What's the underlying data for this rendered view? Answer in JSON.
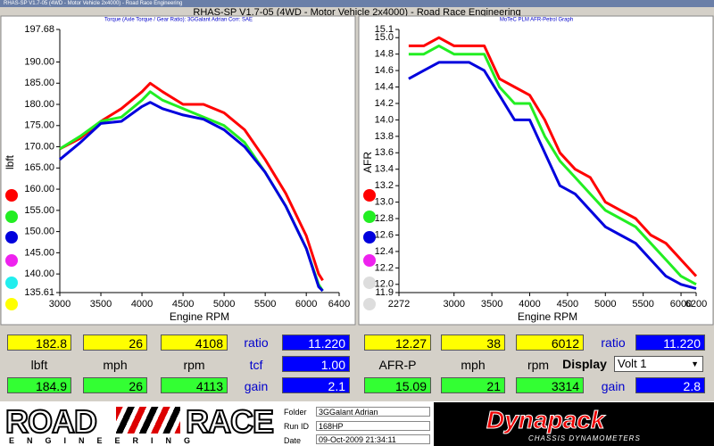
{
  "window": {
    "titlebar": "RHAS-SP V1.7-05   (4WD - Motor Vehicle 2x4000) - Road Race Engineering",
    "title": "RHAS-SP V1.7-05   (4WD - Motor Vehicle 2x4000) - Road Race Engineering"
  },
  "chart_data": [
    {
      "type": "line",
      "title": "Torque (Axle Torque / Gear Ratio): 3GGalant Adrian   Corr: SAE",
      "x_label": "Engine RPM",
      "y_label": "lbft",
      "x": [
        3000,
        3250,
        3500,
        3750,
        4000,
        4100,
        4250,
        4500,
        4750,
        5000,
        5250,
        5500,
        5750,
        6000,
        6150,
        6200
      ],
      "series": [
        {
          "color": "#ff0000",
          "values": [
            169.5,
            172,
            176,
            179,
            183,
            185,
            183,
            180,
            180,
            178,
            174,
            167,
            159,
            149,
            140,
            138.5
          ]
        },
        {
          "color": "#22ee22",
          "values": [
            169.5,
            172.5,
            176,
            177,
            181,
            183,
            181,
            179,
            177,
            175,
            171,
            164,
            156,
            146,
            137.5,
            136
          ]
        },
        {
          "color": "#0000dd",
          "values": [
            167,
            171,
            175.5,
            176,
            179.5,
            180.5,
            179,
            177.5,
            176.5,
            174,
            170,
            164,
            156,
            146,
            137,
            136
          ]
        }
      ],
      "xlim": [
        3000,
        6400
      ],
      "xticks": [
        3000,
        3500,
        4000,
        4500,
        5000,
        5500,
        6000,
        6400
      ],
      "ylim": [
        135.61,
        197.68
      ],
      "yticks": [
        135.61,
        {
          "value": 140,
          "label": "140.00"
        },
        {
          "value": 145,
          "label": "145.00"
        },
        {
          "value": 150,
          "label": "150.00"
        },
        {
          "value": 155,
          "label": "155.00"
        },
        {
          "value": 160,
          "label": "160.00"
        },
        {
          "value": 165,
          "label": "165.00"
        },
        {
          "value": 170,
          "label": "170.00"
        },
        {
          "value": 175,
          "label": "175.00"
        },
        {
          "value": 180,
          "label": "180.00"
        },
        {
          "value": 185,
          "label": "185.00"
        },
        {
          "value": 190,
          "label": "190.00"
        },
        197.68
      ]
    },
    {
      "type": "line",
      "title": "MoTeC PLM AFR-Petrol Graph",
      "x_label": "Engine RPM",
      "y_label": "AFR",
      "x": [
        2400,
        2600,
        2800,
        3000,
        3200,
        3400,
        3600,
        3800,
        4000,
        4200,
        4400,
        4600,
        4800,
        5000,
        5200,
        5400,
        5600,
        5800,
        6000,
        6200
      ],
      "series": [
        {
          "color": "#ff0000",
          "values": [
            14.9,
            14.9,
            15.0,
            14.9,
            14.9,
            14.9,
            14.5,
            14.4,
            14.3,
            14.0,
            13.6,
            13.4,
            13.3,
            13.0,
            12.9,
            12.8,
            12.6,
            12.5,
            12.3,
            12.1
          ]
        },
        {
          "color": "#22ee22",
          "values": [
            14.8,
            14.8,
            14.9,
            14.8,
            14.8,
            14.8,
            14.4,
            14.2,
            14.2,
            13.8,
            13.5,
            13.3,
            13.1,
            12.9,
            12.8,
            12.7,
            12.5,
            12.3,
            12.1,
            12.0
          ]
        },
        {
          "color": "#0000dd",
          "values": [
            14.5,
            14.6,
            14.7,
            14.7,
            14.7,
            14.6,
            14.3,
            14.0,
            14.0,
            13.6,
            13.2,
            13.1,
            12.9,
            12.7,
            12.6,
            12.5,
            12.3,
            12.1,
            12.0,
            11.95
          ]
        }
      ],
      "xlim": [
        2272,
        6200
      ],
      "xticks": [
        2272,
        3000,
        3500,
        4000,
        4500,
        5000,
        5500,
        6000,
        6200
      ],
      "ylim": [
        11.9,
        15.1
      ],
      "yticks": [
        11.9,
        {
          "value": 12,
          "label": "12.0"
        },
        12.2,
        12.4,
        12.6,
        12.8,
        {
          "value": 13,
          "label": "13.0"
        },
        13.2,
        13.4,
        13.6,
        13.8,
        {
          "value": 14,
          "label": "14.0"
        },
        14.2,
        14.4,
        14.6,
        14.8,
        {
          "value": 15,
          "label": "15.0"
        },
        15.1
      ]
    }
  ],
  "left_panel": {
    "row1": [
      "182.8",
      "26",
      "4108"
    ],
    "labels": [
      "lbft",
      "mph",
      "rpm"
    ],
    "row3": [
      "184.9",
      "26",
      "4113"
    ],
    "ratio_label": "ratio",
    "ratio": "11.220",
    "tcf_label": "tcf",
    "tcf": "1.00",
    "gain_label": "gain",
    "gain": "2.1"
  },
  "right_panel": {
    "row1": [
      "12.27",
      "38",
      "6012"
    ],
    "labels": [
      "AFR-P",
      "mph",
      "rpm"
    ],
    "row3": [
      "15.09",
      "21",
      "3314"
    ],
    "ratio_label": "ratio",
    "ratio": "11.220",
    "display_label": "Display",
    "display": "Volt 1",
    "gain_label": "gain",
    "gain": "2.8"
  },
  "footer": {
    "logo_top_left": "ROAD",
    "logo_top_right": "RACE",
    "logo_bottom": "ENGINEERING",
    "folder_label": "Folder",
    "folder": "3GGalant Adrian",
    "run_label": "Run ID",
    "run": "168HP",
    "date_label": "Date",
    "date": "09-Oct-2009  21:34:11",
    "brand": "Dynapack",
    "brand_sub": "CHASSIS DYNAMOMETERS"
  }
}
